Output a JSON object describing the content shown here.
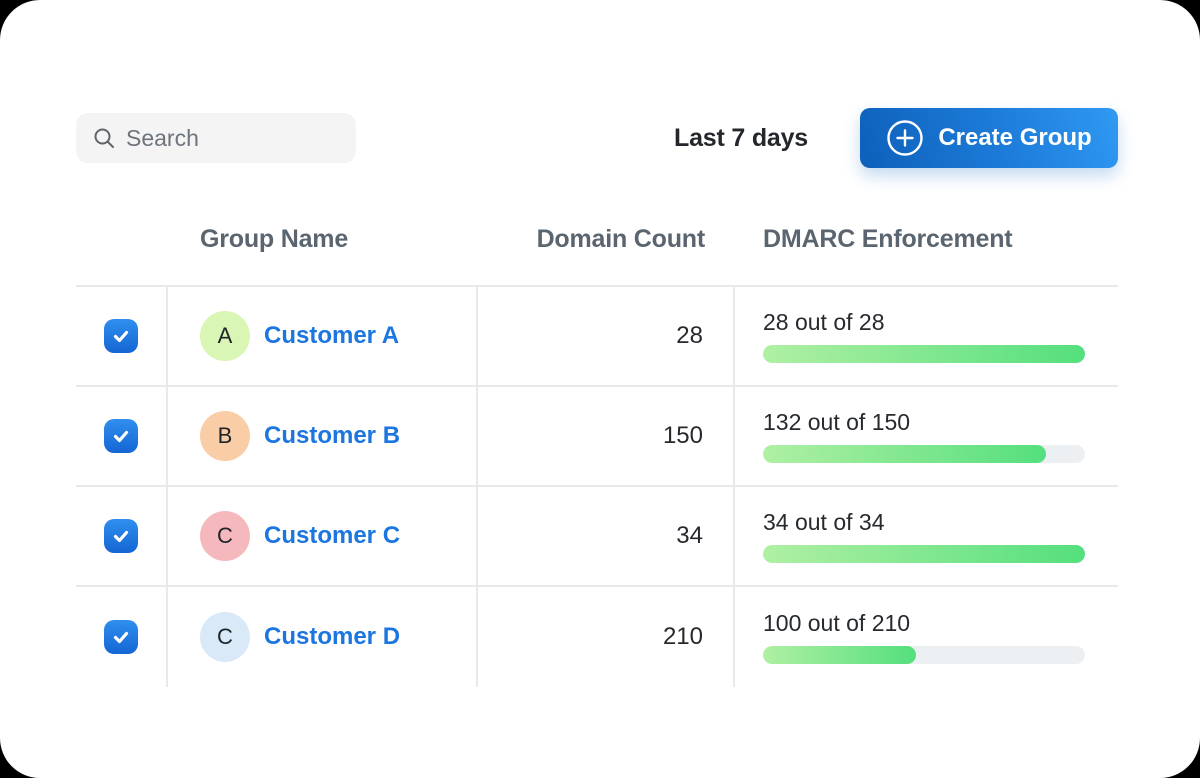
{
  "page": {
    "outer_bg": "#000000",
    "card_bg": "#ffffff"
  },
  "toolbar": {
    "search": {
      "placeholder": "Search",
      "icon": "magnifier"
    },
    "date_range_label": "Last 7 days",
    "create_group": {
      "label": "Create Group",
      "icon": "circle-plus",
      "gradient_start": "#0d60ba",
      "gradient_end": "#309af3"
    }
  },
  "table": {
    "columns": {
      "group_name": "Group Name",
      "domain_count": "Domain Count",
      "dmarc_enforcement": "DMARC Enforcement"
    },
    "progress_colors": {
      "track": "#edf0f3",
      "fill_start": "#b0f0a3",
      "fill_end": "#54df7d"
    },
    "checkbox_color": "#1e74dd",
    "rows": [
      {
        "selected": true,
        "avatar_letter": "A",
        "avatar_bg": "#d9f6b5",
        "name": "Customer A",
        "domain_count": "28",
        "enforcement_label": "28 out of 28",
        "enforced": 28,
        "total": 28
      },
      {
        "selected": true,
        "avatar_letter": "B",
        "avatar_bg": "#f9cda6",
        "name": "Customer B",
        "domain_count": "150",
        "enforcement_label": "132 out of 150",
        "enforced": 132,
        "total": 150
      },
      {
        "selected": true,
        "avatar_letter": "C",
        "avatar_bg": "#f5b9bd",
        "name": "Customer C",
        "domain_count": "34",
        "enforcement_label": "34 out of 34",
        "enforced": 34,
        "total": 34
      },
      {
        "selected": true,
        "avatar_letter": "C",
        "avatar_bg": "#d9e9f8",
        "name": "Customer D",
        "domain_count": "210",
        "enforcement_label": "100 out of 210",
        "enforced": 100,
        "total": 210
      }
    ]
  }
}
